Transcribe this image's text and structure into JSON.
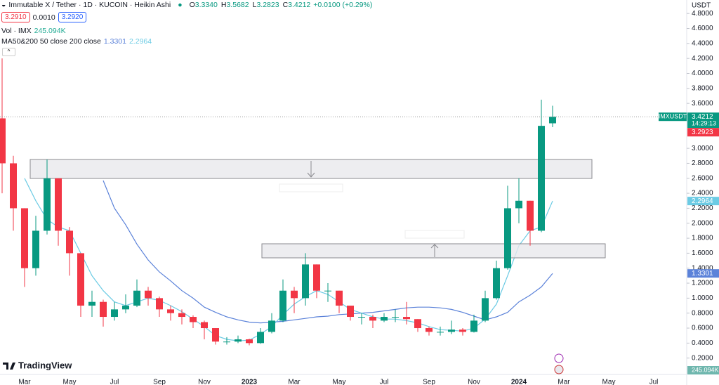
{
  "header": {
    "icon": "◒",
    "ohlc": [
      {
        "key": "O",
        "value": "3.3340"
      },
      {
        "key": "H",
        "value": "3.5682"
      },
      {
        "key": "L",
        "value": "3.2823"
      },
      {
        "key": "C",
        "value": "3.4212"
      }
    ],
    "change": "+0.0100 (+0.29%)",
    "bid": "3.2910",
    "spread": "0.0010",
    "ask": "3.2920",
    "volume_label": "Vol · IMX",
    "volume": "245.094K",
    "ma_label": "MA50&200 50 close 200 close"
  },
  "right_axis": {
    "currency": "USDT",
    "symbol": "IMXUSDT",
    "countdown": "14:29:13",
    "secondary_price": "3.2923"
  },
  "brand": "TradingView",
  "chart_data": {
    "type": "candlestick",
    "title": "Immutable X / Tether · 1D · KUCOIN · Heikin Ashi",
    "categories": [
      null,
      null,
      "Mar",
      null,
      null,
      null,
      "May",
      null,
      null,
      null,
      "Jul",
      null,
      null,
      null,
      "Sep",
      null,
      null,
      null,
      "Nov",
      null,
      null,
      null,
      "2023",
      null,
      null,
      null,
      "Mar",
      null,
      null,
      null,
      "May",
      null,
      null,
      null,
      "Jul",
      null,
      null,
      null,
      "Sep",
      null,
      null,
      null,
      "Nov",
      null,
      null,
      null,
      "2024",
      null,
      null,
      null,
      "Mar",
      null,
      null,
      null,
      "May",
      null,
      null,
      null,
      "Jul",
      null,
      null
    ],
    "open": [
      3.4,
      2.8,
      2.2,
      1.4,
      1.9,
      2.6,
      1.9,
      1.6,
      0.9,
      0.95,
      0.75,
      0.85,
      0.9,
      1.1,
      1.0,
      0.85,
      0.8,
      0.75,
      0.68,
      0.6,
      0.42,
      0.42,
      0.45,
      0.4,
      0.55,
      0.7,
      1.1,
      1.0,
      1.45,
      1.1,
      1.1,
      0.9,
      0.75,
      0.75,
      0.7,
      0.75,
      0.75,
      0.72,
      0.6,
      0.55,
      0.55,
      0.58,
      0.55,
      0.7,
      1.0,
      1.4,
      2.2,
      2.3,
      1.9,
      3.334,
      null,
      null,
      null,
      null,
      null,
      null,
      null,
      null,
      null,
      null,
      null
    ],
    "high": [
      4.2,
      2.9,
      2.2,
      2.1,
      2.85,
      2.6,
      1.95,
      1.6,
      1.1,
      0.98,
      0.95,
      1.05,
      1.25,
      1.15,
      1.02,
      0.9,
      0.85,
      0.77,
      0.7,
      0.6,
      0.48,
      0.5,
      0.46,
      0.6,
      0.8,
      1.25,
      1.15,
      1.6,
      1.45,
      1.2,
      1.1,
      0.9,
      0.8,
      0.78,
      0.8,
      0.85,
      0.95,
      0.72,
      0.62,
      0.62,
      0.7,
      0.6,
      0.78,
      1.1,
      1.5,
      2.5,
      2.6,
      2.3,
      3.65,
      3.5682,
      null,
      null,
      null,
      null,
      null,
      null,
      null,
      null,
      null,
      null,
      null
    ],
    "low": [
      2.4,
      1.9,
      1.15,
      1.3,
      1.85,
      1.7,
      1.3,
      0.75,
      0.75,
      0.62,
      0.7,
      0.8,
      0.88,
      0.9,
      0.75,
      0.7,
      0.65,
      0.6,
      0.45,
      0.38,
      0.38,
      0.4,
      0.37,
      0.39,
      0.53,
      0.68,
      0.8,
      0.9,
      1.0,
      0.95,
      0.8,
      0.7,
      0.65,
      0.6,
      0.68,
      0.68,
      0.65,
      0.55,
      0.5,
      0.5,
      0.52,
      0.5,
      0.54,
      0.68,
      0.98,
      1.38,
      2.0,
      1.7,
      1.88,
      3.2823,
      null,
      null,
      null,
      null,
      null,
      null,
      null,
      null,
      null,
      null,
      null
    ],
    "close": [
      2.8,
      2.2,
      1.4,
      1.9,
      2.6,
      1.9,
      1.6,
      0.9,
      0.95,
      0.75,
      0.85,
      0.9,
      1.1,
      1.0,
      0.85,
      0.8,
      0.75,
      0.68,
      0.6,
      0.42,
      0.42,
      0.45,
      0.4,
      0.55,
      0.7,
      1.1,
      1.0,
      1.45,
      1.1,
      1.1,
      0.9,
      0.75,
      0.75,
      0.7,
      0.75,
      0.75,
      0.72,
      0.6,
      0.55,
      0.55,
      0.58,
      0.55,
      0.7,
      1.0,
      1.4,
      2.2,
      2.3,
      1.9,
      3.3,
      3.4212,
      null,
      null,
      null,
      null,
      null,
      null,
      null,
      null,
      null,
      null,
      null
    ],
    "up_color": "#089981",
    "down_color": "#f23645",
    "moving_averages": [
      {
        "name": "MA200",
        "color": "#5b82d9",
        "values": [
          null,
          null,
          null,
          null,
          null,
          null,
          null,
          null,
          null,
          2.57,
          2.2,
          1.98,
          1.72,
          1.51,
          1.35,
          1.23,
          1.1,
          1.0,
          0.88,
          0.81,
          0.75,
          0.71,
          0.68,
          0.67,
          0.68,
          0.69,
          0.71,
          0.73,
          0.75,
          0.76,
          0.78,
          0.79,
          0.8,
          0.81,
          0.83,
          0.85,
          0.87,
          0.88,
          0.88,
          0.87,
          0.85,
          0.81,
          0.76,
          0.71,
          0.75,
          0.81,
          0.95,
          1.04,
          1.15,
          1.3301,
          null,
          null,
          null,
          null,
          null,
          null,
          null,
          null,
          null,
          null,
          null
        ]
      },
      {
        "name": "MA50",
        "color": "#6ccbe4",
        "values": [
          null,
          null,
          2.6,
          2.3,
          2.05,
          1.95,
          1.9,
          1.6,
          1.3,
          1.1,
          0.95,
          0.9,
          0.95,
          1.0,
          0.97,
          0.9,
          0.82,
          0.72,
          0.62,
          0.5,
          0.45,
          0.43,
          0.44,
          0.52,
          0.62,
          0.78,
          0.92,
          1.02,
          1.1,
          1.05,
          0.95,
          0.85,
          0.8,
          0.75,
          0.72,
          0.72,
          0.7,
          0.67,
          0.62,
          0.58,
          0.57,
          0.56,
          0.6,
          0.72,
          0.92,
          1.3,
          1.7,
          1.9,
          1.95,
          2.2964,
          null,
          null,
          null,
          null,
          null,
          null,
          null,
          null,
          null,
          null,
          null
        ]
      }
    ],
    "ylim": [
      0,
      4.98
    ],
    "yticks": [
      {
        "value": 0.2,
        "label": "0.2000"
      },
      {
        "value": 0.4,
        "label": "0.4000"
      },
      {
        "value": 0.6,
        "label": "0.6000"
      },
      {
        "value": 0.8,
        "label": "0.8000"
      },
      {
        "value": 1.0,
        "label": "1.0000"
      },
      {
        "value": 1.2,
        "label": "1.2000"
      },
      {
        "value": 1.4,
        "label": "1.4000"
      },
      {
        "value": 1.6,
        "label": "1.6000"
      },
      {
        "value": 1.8,
        "label": "1.8000"
      },
      {
        "value": 2.0,
        "label": "2.0000"
      },
      {
        "value": 2.2,
        "label": "2.2000"
      },
      {
        "value": 2.4,
        "label": "2.4000"
      },
      {
        "value": 2.6,
        "label": "2.6000"
      },
      {
        "value": 2.8,
        "label": "2.8000"
      },
      {
        "value": 3.0,
        "label": "3.0000"
      },
      {
        "value": 3.6,
        "label": "3.6000"
      },
      {
        "value": 3.8,
        "label": "3.8000"
      },
      {
        "value": 4.0,
        "label": "4.0000"
      },
      {
        "value": 4.2,
        "label": "4.2000"
      },
      {
        "value": 4.4,
        "label": "4.4000"
      },
      {
        "value": 4.6,
        "label": "4.6000"
      },
      {
        "value": 4.8,
        "label": "4.8000"
      }
    ],
    "grid": false
  }
}
